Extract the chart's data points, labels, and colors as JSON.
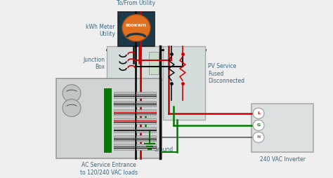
{
  "bg_color": "#efefef",
  "meter_box_color": "#1a3a4a",
  "meter_circle_color": "#e07020",
  "meter_text": "800KWH",
  "junction_box_color": "#d4dcdc",
  "service_panel_color": "#d0d4d4",
  "inverter_box_color": "#dde0e0",
  "disconnect_box_color": "#d4dcdc",
  "wire_black": "#111111",
  "wire_red": "#cc0000",
  "wire_green": "#007a00",
  "label_color": "#3a6880",
  "label_fontsize": 5.5,
  "labels": {
    "to_from_utility": "To/From Utility",
    "kwh_meter": "kWh Meter\nUtility",
    "junction_box": "Junction\nBox",
    "pv_service": "PV Service\nFused\nDisconnected",
    "ground": "Ground",
    "ac_service": "AC Service Entrance\nto 120/240 VAC loads",
    "inverter": "240 VAC Inverter"
  }
}
